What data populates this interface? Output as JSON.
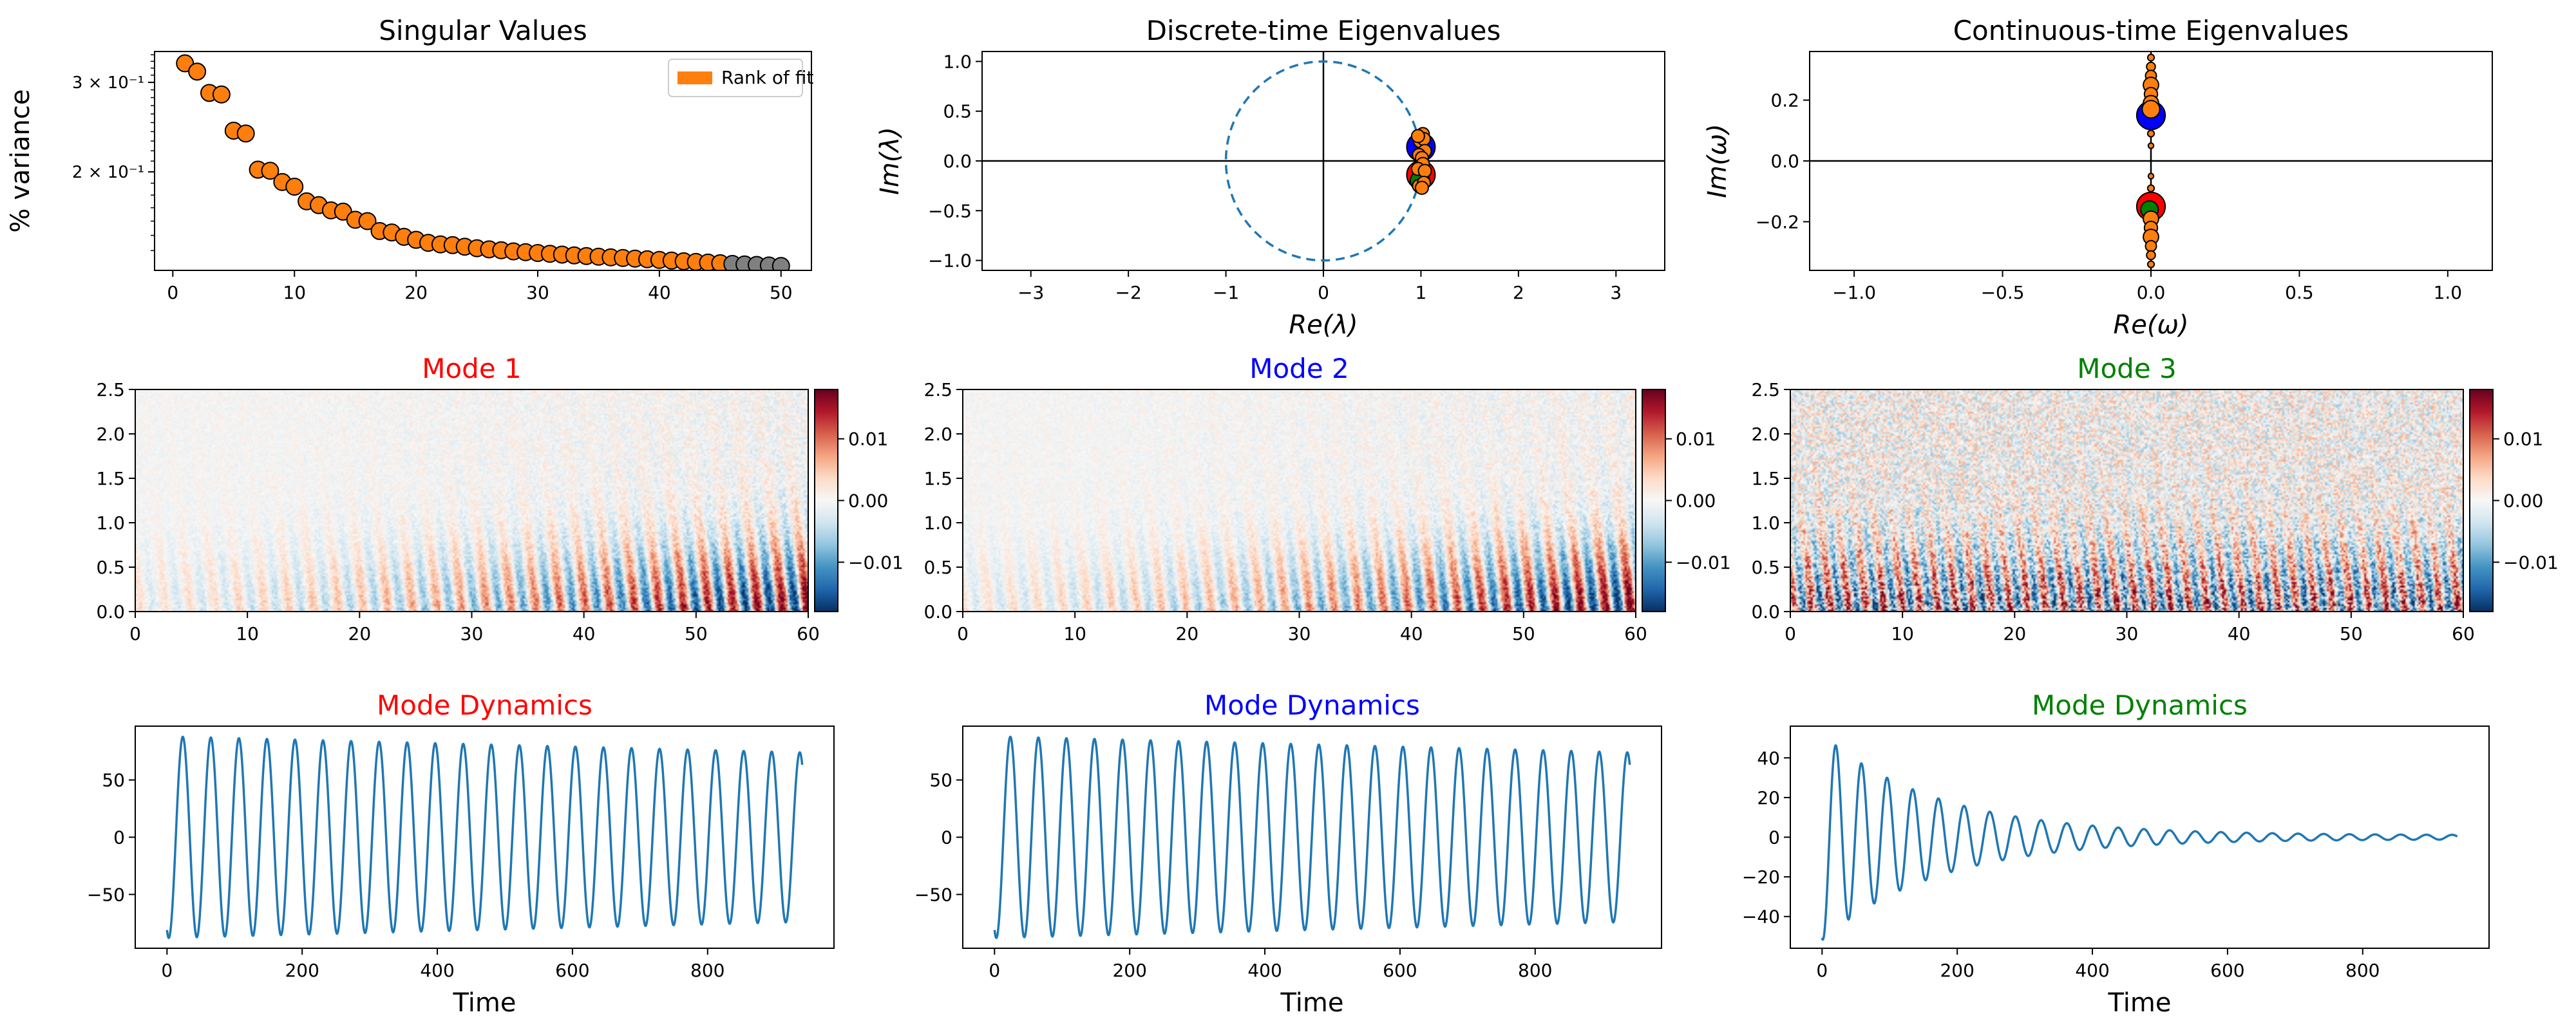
{
  "colors": {
    "orange": "#ff7f0e",
    "gray": "#808080",
    "line": "#1f77b4",
    "mode1": "#ff0000",
    "mode2": "#0000ff",
    "mode3": "#008000"
  },
  "chart_data": [
    {
      "id": "singular-values",
      "type": "scatter",
      "title": "Singular Values",
      "ylabel": "% variance",
      "xlabel": "",
      "yscale": "log",
      "xlim": [
        -1.5,
        52.5
      ],
      "ylim": [
        0.128,
        0.345
      ],
      "xticks": [
        0,
        10,
        20,
        30,
        40,
        50
      ],
      "yticks": [
        {
          "value": 0.3,
          "label": "3 × 10⁻¹"
        },
        {
          "value": 0.2,
          "label": "2 × 10⁻¹"
        }
      ],
      "legend": {
        "label": "Rank of fit",
        "placement": "top-right"
      },
      "rank": 45,
      "x": [
        1,
        2,
        3,
        4,
        5,
        6,
        7,
        8,
        9,
        10,
        11,
        12,
        13,
        14,
        15,
        16,
        17,
        18,
        19,
        20,
        21,
        22,
        23,
        24,
        25,
        26,
        27,
        28,
        29,
        30,
        31,
        32,
        33,
        34,
        35,
        36,
        37,
        38,
        39,
        40,
        41,
        42,
        43,
        44,
        45,
        46,
        47,
        48,
        49,
        50
      ],
      "values": [
        0.327,
        0.315,
        0.286,
        0.284,
        0.241,
        0.238,
        0.202,
        0.201,
        0.191,
        0.187,
        0.175,
        0.172,
        0.168,
        0.167,
        0.161,
        0.16,
        0.153,
        0.152,
        0.149,
        0.147,
        0.145,
        0.144,
        0.1435,
        0.1425,
        0.1415,
        0.1408,
        0.1402,
        0.1395,
        0.139,
        0.1385,
        0.138,
        0.1375,
        0.137,
        0.1366,
        0.1362,
        0.1358,
        0.1354,
        0.135,
        0.1346,
        0.1342,
        0.1338,
        0.1334,
        0.133,
        0.1326,
        0.1322,
        0.1318,
        0.1315,
        0.1312,
        0.1309,
        0.1306
      ]
    },
    {
      "id": "discrete-eigenvalues",
      "type": "scatter",
      "title": "Discrete-time Eigenvalues",
      "xlabel": "Re(λ)",
      "ylabel": "Im(λ)",
      "xlim": [
        -3.5,
        3.5
      ],
      "ylim": [
        -1.1,
        1.1
      ],
      "xticks": [
        -3,
        -2,
        -1,
        0,
        1,
        2,
        3
      ],
      "yticks": [
        -1.0,
        -0.5,
        0.0,
        0.5,
        1.0
      ],
      "unit_circle": true,
      "points": [
        {
          "re": 1.0,
          "im": 0.14,
          "mode": 2
        },
        {
          "re": 1.0,
          "im": -0.14,
          "mode": 1
        },
        {
          "re": 0.99,
          "im": -0.2,
          "mode": 3
        },
        {
          "re": 0.99,
          "im": 0.2,
          "mode": 0
        },
        {
          "re": 1.02,
          "im": 0.27,
          "mode": 0
        },
        {
          "re": 1.03,
          "im": 0.22,
          "mode": 0
        },
        {
          "re": 0.97,
          "im": 0.25,
          "mode": 0
        },
        {
          "re": 1.04,
          "im": 0.1,
          "mode": 0
        },
        {
          "re": 0.98,
          "im": 0.06,
          "mode": 0
        },
        {
          "re": 1.01,
          "im": 0.03,
          "mode": 0
        },
        {
          "re": 1.02,
          "im": -0.03,
          "mode": 0
        },
        {
          "re": 0.97,
          "im": -0.08,
          "mode": 0
        },
        {
          "re": 1.04,
          "im": -0.1,
          "mode": 0
        },
        {
          "re": 0.98,
          "im": -0.25,
          "mode": 0
        },
        {
          "re": 1.03,
          "im": -0.22,
          "mode": 0
        },
        {
          "re": 1.01,
          "im": -0.27,
          "mode": 0
        }
      ]
    },
    {
      "id": "continuous-eigenvalues",
      "type": "scatter",
      "title": "Continuous-time Eigenvalues",
      "xlabel": "Re(ω)",
      "ylabel": "Im(ω)",
      "xlim": [
        -1.15,
        1.15
      ],
      "ylim": [
        -0.36,
        0.36
      ],
      "xticks": [
        -1.0,
        -0.5,
        0.0,
        0.5,
        1.0
      ],
      "yticks": [
        -0.2,
        0.0,
        0.2
      ],
      "points": [
        {
          "re": 0.0,
          "im": 0.15,
          "mode": 2,
          "size": 26
        },
        {
          "re": 0.0,
          "im": -0.15,
          "mode": 1,
          "size": 26
        },
        {
          "re": -0.005,
          "im": -0.16,
          "mode": 3,
          "size": 16
        },
        {
          "re": 0.0,
          "im": 0.34,
          "mode": 0,
          "size": 6
        },
        {
          "re": 0.0,
          "im": 0.31,
          "mode": 0,
          "size": 8
        },
        {
          "re": 0.0,
          "im": 0.28,
          "mode": 0,
          "size": 10
        },
        {
          "re": 0.0,
          "im": 0.25,
          "mode": 0,
          "size": 14
        },
        {
          "re": 0.0,
          "im": 0.22,
          "mode": 0,
          "size": 12
        },
        {
          "re": 0.0,
          "im": 0.19,
          "mode": 0,
          "size": 14
        },
        {
          "re": 0.0,
          "im": 0.17,
          "mode": 0,
          "size": 16
        },
        {
          "re": 0.0,
          "im": 0.09,
          "mode": 0,
          "size": 6
        },
        {
          "re": 0.0,
          "im": 0.05,
          "mode": 0,
          "size": 5
        },
        {
          "re": 0.0,
          "im": -0.05,
          "mode": 0,
          "size": 5
        },
        {
          "re": 0.0,
          "im": -0.09,
          "mode": 0,
          "size": 6
        },
        {
          "re": 0.0,
          "im": -0.19,
          "mode": 0,
          "size": 14
        },
        {
          "re": 0.0,
          "im": -0.22,
          "mode": 0,
          "size": 12
        },
        {
          "re": 0.0,
          "im": -0.25,
          "mode": 0,
          "size": 14
        },
        {
          "re": 0.0,
          "im": -0.28,
          "mode": 0,
          "size": 10
        },
        {
          "re": 0.0,
          "im": -0.31,
          "mode": 0,
          "size": 8
        },
        {
          "re": 0.0,
          "im": -0.34,
          "mode": 0,
          "size": 6
        }
      ]
    },
    {
      "id": "mode-1",
      "type": "heatmap",
      "title": "Mode 1",
      "title_color": "#ff0000",
      "xlim": [
        0,
        60
      ],
      "ylim": [
        0,
        2.5
      ],
      "xticks": [
        0,
        10,
        20,
        30,
        40,
        50,
        60
      ],
      "yticks": [
        0.0,
        0.5,
        1.0,
        1.5,
        2.0,
        2.5
      ],
      "colorbar": {
        "min": -0.018,
        "max": 0.018,
        "ticks": [
          {
            "value": 0.01,
            "label": "0.01"
          },
          {
            "value": 0.0,
            "label": "0.00"
          },
          {
            "value": -0.01,
            "label": "−0.01"
          }
        ]
      },
      "amplitude": 0.018,
      "noise": 0.35,
      "growth": "increasing",
      "stripe_period": 2.2,
      "seed": 11
    },
    {
      "id": "mode-2",
      "type": "heatmap",
      "title": "Mode 2",
      "title_color": "#0000ff",
      "xlim": [
        0,
        60
      ],
      "ylim": [
        0,
        2.5
      ],
      "xticks": [
        0,
        10,
        20,
        30,
        40,
        50,
        60
      ],
      "yticks": [
        0.0,
        0.5,
        1.0,
        1.5,
        2.0,
        2.5
      ],
      "colorbar": {
        "min": -0.018,
        "max": 0.018,
        "ticks": [
          {
            "value": 0.01,
            "label": "0.01"
          },
          {
            "value": 0.0,
            "label": "0.00"
          },
          {
            "value": -0.01,
            "label": "−0.01"
          }
        ]
      },
      "amplitude": 0.018,
      "noise": 0.35,
      "growth": "increasing",
      "stripe_period": 2.2,
      "phase": 1.1,
      "seed": 23
    },
    {
      "id": "mode-3",
      "type": "heatmap",
      "title": "Mode 3",
      "title_color": "#008000",
      "xlim": [
        0,
        60
      ],
      "ylim": [
        0,
        2.5
      ],
      "xticks": [
        0,
        10,
        20,
        30,
        40,
        50,
        60
      ],
      "yticks": [
        0.0,
        0.5,
        1.0,
        1.5,
        2.0,
        2.5
      ],
      "colorbar": {
        "min": -0.018,
        "max": 0.018,
        "ticks": [
          {
            "value": 0.01,
            "label": "0.01"
          },
          {
            "value": 0.0,
            "label": "0.00"
          },
          {
            "value": -0.01,
            "label": "−0.01"
          }
        ]
      },
      "amplitude": 0.012,
      "noise": 0.85,
      "growth": "flat",
      "stripe_period": 1.6,
      "seed": 37
    },
    {
      "id": "dynamics-1",
      "type": "line",
      "title": "Mode Dynamics",
      "title_color": "#ff0000",
      "xlabel": "",
      "xlim": [
        -47,
        987
      ],
      "ylim": [
        -97,
        97
      ],
      "xticks": [
        0,
        200,
        400,
        600,
        800
      ],
      "yticks": [
        -50,
        0,
        50
      ],
      "amplitude": 88,
      "end_amplitude": 74,
      "decay": 0,
      "period": 41.5,
      "phase": -1.97,
      "t_end": 940
    },
    {
      "id": "dynamics-2",
      "type": "line",
      "title": "Mode Dynamics",
      "title_color": "#0000ff",
      "xlabel": "Time",
      "xlim": [
        -47,
        987
      ],
      "ylim": [
        -97,
        97
      ],
      "xticks": [
        0,
        200,
        400,
        600,
        800
      ],
      "yticks": [
        -50,
        0,
        50
      ],
      "amplitude": 88,
      "end_amplitude": 74,
      "decay": 0,
      "period": 41.5,
      "phase": -1.97,
      "t_end": 940
    },
    {
      "id": "dynamics-3",
      "type": "line",
      "title": "Mode Dynamics",
      "title_color": "#008000",
      "xlabel": "Time",
      "xlim": [
        -47,
        987
      ],
      "ylim": [
        -56,
        56
      ],
      "xticks": [
        0,
        200,
        400,
        600,
        800
      ],
      "yticks": [
        -40,
        -20,
        0,
        20,
        40
      ],
      "amplitude": 52,
      "end_amplitude": 1,
      "decay": 1,
      "period": 38,
      "phase": -1.79,
      "t_end": 940
    }
  ],
  "shared_xlabels": {
    "dynamics-1": "Time"
  }
}
